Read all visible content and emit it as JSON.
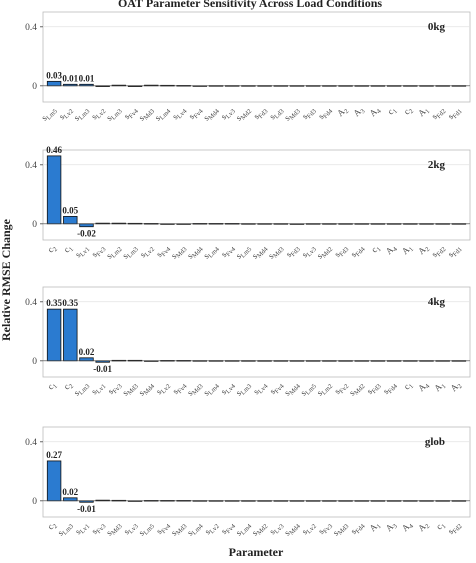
{
  "chart_data": [
    {
      "type": "bar",
      "title": "OAT Parameter Sensitivity Across Load Conditions",
      "ylabel": "Relative RMSE Change",
      "xlabel": "Parameter",
      "annotation": "0kg",
      "categories": [
        "sLm5",
        "sLv2",
        "sLm3",
        "sLv2",
        "sLm3",
        "sFv4",
        "sMd3",
        "sLm4",
        "sLv4",
        "sFv4",
        "sMd4",
        "sLv3",
        "sMd2",
        "sFd3",
        "sLd3",
        "sMd3",
        "sFd3",
        "sFd4",
        "A2",
        "A3",
        "A4",
        "c1",
        "c2",
        "A1",
        "sFd2",
        "sFd1"
      ],
      "values": [
        0.03,
        0.01,
        0.01,
        -0.005,
        0.004,
        -0.005,
        0.004,
        0.003,
        0.002,
        -0.002,
        0.001,
        0.001,
        0.001,
        0.001,
        0.001,
        0.001,
        0.001,
        0.001,
        0.001,
        0.001,
        0.001,
        0.001,
        0.001,
        0.001,
        0.001,
        0.001
      ],
      "color": "#2b7bd0",
      "ylim": [
        -0.11,
        0.5
      ],
      "yticks": [
        0,
        0.4
      ],
      "grid": true
    },
    {
      "type": "bar",
      "annotation": "2kg",
      "categories": [
        "c2",
        "c1",
        "sLv1",
        "sFv3",
        "sLm2",
        "sLm3",
        "sLv2",
        "sFv4",
        "sMd3",
        "sMd4",
        "sLm4",
        "sFv4",
        "sLm5",
        "sMd4",
        "sMd3",
        "sFd3",
        "sLv3",
        "sMd2",
        "sFd3",
        "sFd4",
        "c1",
        "A4",
        "A1",
        "A2",
        "sFd2",
        "sFd1"
      ],
      "values": [
        0.46,
        0.05,
        -0.02,
        0.004,
        0.004,
        0.003,
        0.002,
        -0.003,
        -0.002,
        0.002,
        0.002,
        0.002,
        0.001,
        0.001,
        0.001,
        -0.001,
        0.001,
        0.001,
        0.001,
        0.001,
        0.001,
        0.001,
        0.001,
        0.001,
        0.001,
        0.001
      ],
      "color": "#2b7bd0",
      "ylim": [
        -0.11,
        0.5
      ],
      "yticks": [
        0,
        0.4
      ],
      "grid": true
    },
    {
      "type": "bar",
      "annotation": "4kg",
      "categories": [
        "c1",
        "c2",
        "sLm3",
        "sLv1",
        "sFv3",
        "sMd3",
        "sMd4",
        "sLv2",
        "sFv4",
        "sMd3",
        "sLm4",
        "sLv4",
        "sLm3",
        "sLv4",
        "sFv4",
        "sMd4",
        "sLm5",
        "sLm2",
        "sFv2",
        "sMd2",
        "sFd3",
        "sFd4",
        "c1",
        "A4",
        "A1",
        "A2"
      ],
      "values": [
        0.35,
        0.35,
        0.02,
        -0.01,
        0.003,
        0.003,
        -0.002,
        0.002,
        0.002,
        0.001,
        0.001,
        0.001,
        0.001,
        0.001,
        0.001,
        0.001,
        0.001,
        0.001,
        0.001,
        0.001,
        0.001,
        0.001,
        0.001,
        0.001,
        0.001,
        0.001
      ],
      "color": "#2b7bd0",
      "ylim": [
        -0.11,
        0.5
      ],
      "yticks": [
        0,
        0.4
      ],
      "grid": true
    },
    {
      "type": "bar",
      "annotation": "glob",
      "categories": [
        "c2",
        "sLm3",
        "sLv1",
        "sFv3",
        "sMd3",
        "sLv3",
        "sLm5",
        "sFv4",
        "sMd3",
        "sLm4",
        "sLv2",
        "sFv4",
        "sLm4",
        "sMd2",
        "sLv3",
        "sMd4",
        "sLv2",
        "sFv3",
        "sMd3",
        "sFd4",
        "A1",
        "A3",
        "A4",
        "A2",
        "c1",
        "sFd2"
      ],
      "values": [
        0.27,
        0.02,
        -0.01,
        0.004,
        0.003,
        -0.002,
        0.002,
        0.002,
        0.002,
        0.001,
        0.001,
        0.001,
        0.001,
        0.001,
        0.001,
        0.001,
        0.001,
        0.001,
        0.001,
        0.001,
        0.001,
        0.001,
        0.001,
        0.001,
        0.001,
        0.001
      ],
      "color": "#2b7bd0",
      "ylim": [
        -0.11,
        0.5
      ],
      "yticks": [
        0,
        0.4
      ],
      "grid": true
    }
  ]
}
